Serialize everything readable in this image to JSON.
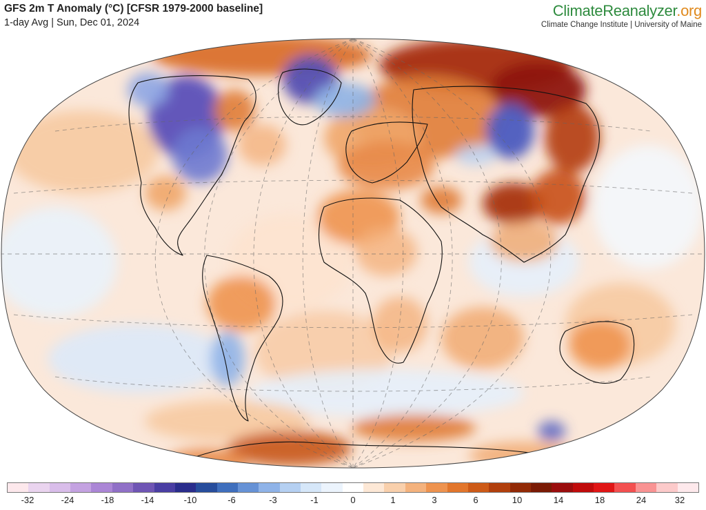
{
  "header": {
    "title": "GFS 2m T Anomaly (°C) [CFSR 1979-2000 baseline]",
    "subtitle": "1-day Avg | Sun, Dec 01, 2024"
  },
  "brand": {
    "name_part1": "Climate",
    "name_part2": "Reanalyzer",
    "name_part3": ".org",
    "color_part1": "#2e8b3e",
    "color_part2": "#2e8b3e",
    "color_part3": "#e08a1e",
    "subtitle": "Climate Change Institute | University of Maine"
  },
  "map": {
    "projection": "Winkel Tripel (global)",
    "gridlines": "dashed lat/lon graticule",
    "ocean_background": "#fbe3cf",
    "land_outline": "#111111",
    "anomaly_regions": [
      {
        "area": "Arctic / northern Siberia",
        "sign": "strong warm"
      },
      {
        "area": "Central Canada / central USA",
        "sign": "strong cold"
      },
      {
        "area": "Greenland",
        "sign": "cold"
      },
      {
        "area": "Western Siberia",
        "sign": "cold"
      },
      {
        "area": "Eastern Siberia / Mongolia",
        "sign": "strong warm"
      },
      {
        "area": "Europe / North Africa / Middle East",
        "sign": "warm"
      },
      {
        "area": "South America",
        "sign": "warm"
      },
      {
        "area": "Southern Africa",
        "sign": "mild"
      },
      {
        "area": "Australia",
        "sign": "warm"
      },
      {
        "area": "Antarctica",
        "sign": "warm"
      },
      {
        "area": "Tropical Pacific",
        "sign": "cool"
      }
    ]
  },
  "colorbar": {
    "colors": [
      "#fde8ec",
      "#ead4ef",
      "#d9bdea",
      "#c4a2e1",
      "#ab86d6",
      "#9070c7",
      "#6f55b4",
      "#4a3ea3",
      "#2a2d8c",
      "#274d9c",
      "#3f6fbd",
      "#6692d6",
      "#8fb3e8",
      "#b5d0f2",
      "#d6e7f9",
      "#ecf4fd",
      "#ffffff",
      "#fde8d6",
      "#f9d0ac",
      "#f4b27d",
      "#ee934f",
      "#e2762c",
      "#cd5a17",
      "#b13f0c",
      "#922a06",
      "#7a1a04",
      "#9a0d0d",
      "#c00b0b",
      "#e01515",
      "#f35050",
      "#f99393",
      "#fccaca",
      "#fee9ec"
    ],
    "ticks": [
      "-32",
      "-24",
      "-18",
      "-14",
      "-10",
      "-6",
      "-3",
      "-1",
      "0",
      "1",
      "3",
      "6",
      "10",
      "14",
      "18",
      "24",
      "32"
    ]
  }
}
